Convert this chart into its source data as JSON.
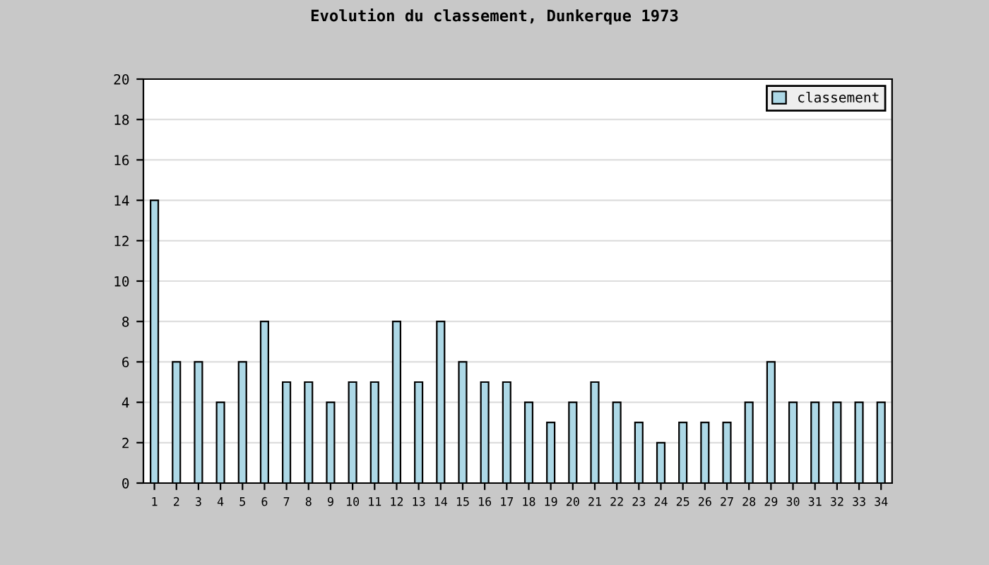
{
  "chart_data": {
    "type": "bar",
    "title": "Evolution du classement, Dunkerque 1973",
    "categories": [
      "1",
      "2",
      "3",
      "4",
      "5",
      "6",
      "7",
      "8",
      "9",
      "10",
      "11",
      "12",
      "13",
      "14",
      "15",
      "16",
      "17",
      "18",
      "19",
      "20",
      "21",
      "22",
      "23",
      "24",
      "25",
      "26",
      "27",
      "28",
      "29",
      "30",
      "31",
      "32",
      "33",
      "34"
    ],
    "series": [
      {
        "name": "classement",
        "color": "#add8e6",
        "values": [
          14,
          6,
          6,
          4,
          6,
          8,
          5,
          5,
          4,
          5,
          5,
          8,
          5,
          8,
          6,
          5,
          5,
          4,
          3,
          4,
          5,
          4,
          3,
          2,
          3,
          3,
          3,
          4,
          6,
          4,
          4,
          4,
          4,
          4
        ]
      }
    ],
    "ylim": [
      0,
      20
    ],
    "yticks": [
      0,
      2,
      4,
      6,
      8,
      10,
      12,
      14,
      16,
      18,
      20
    ],
    "grid": "y",
    "legend": "top right"
  }
}
